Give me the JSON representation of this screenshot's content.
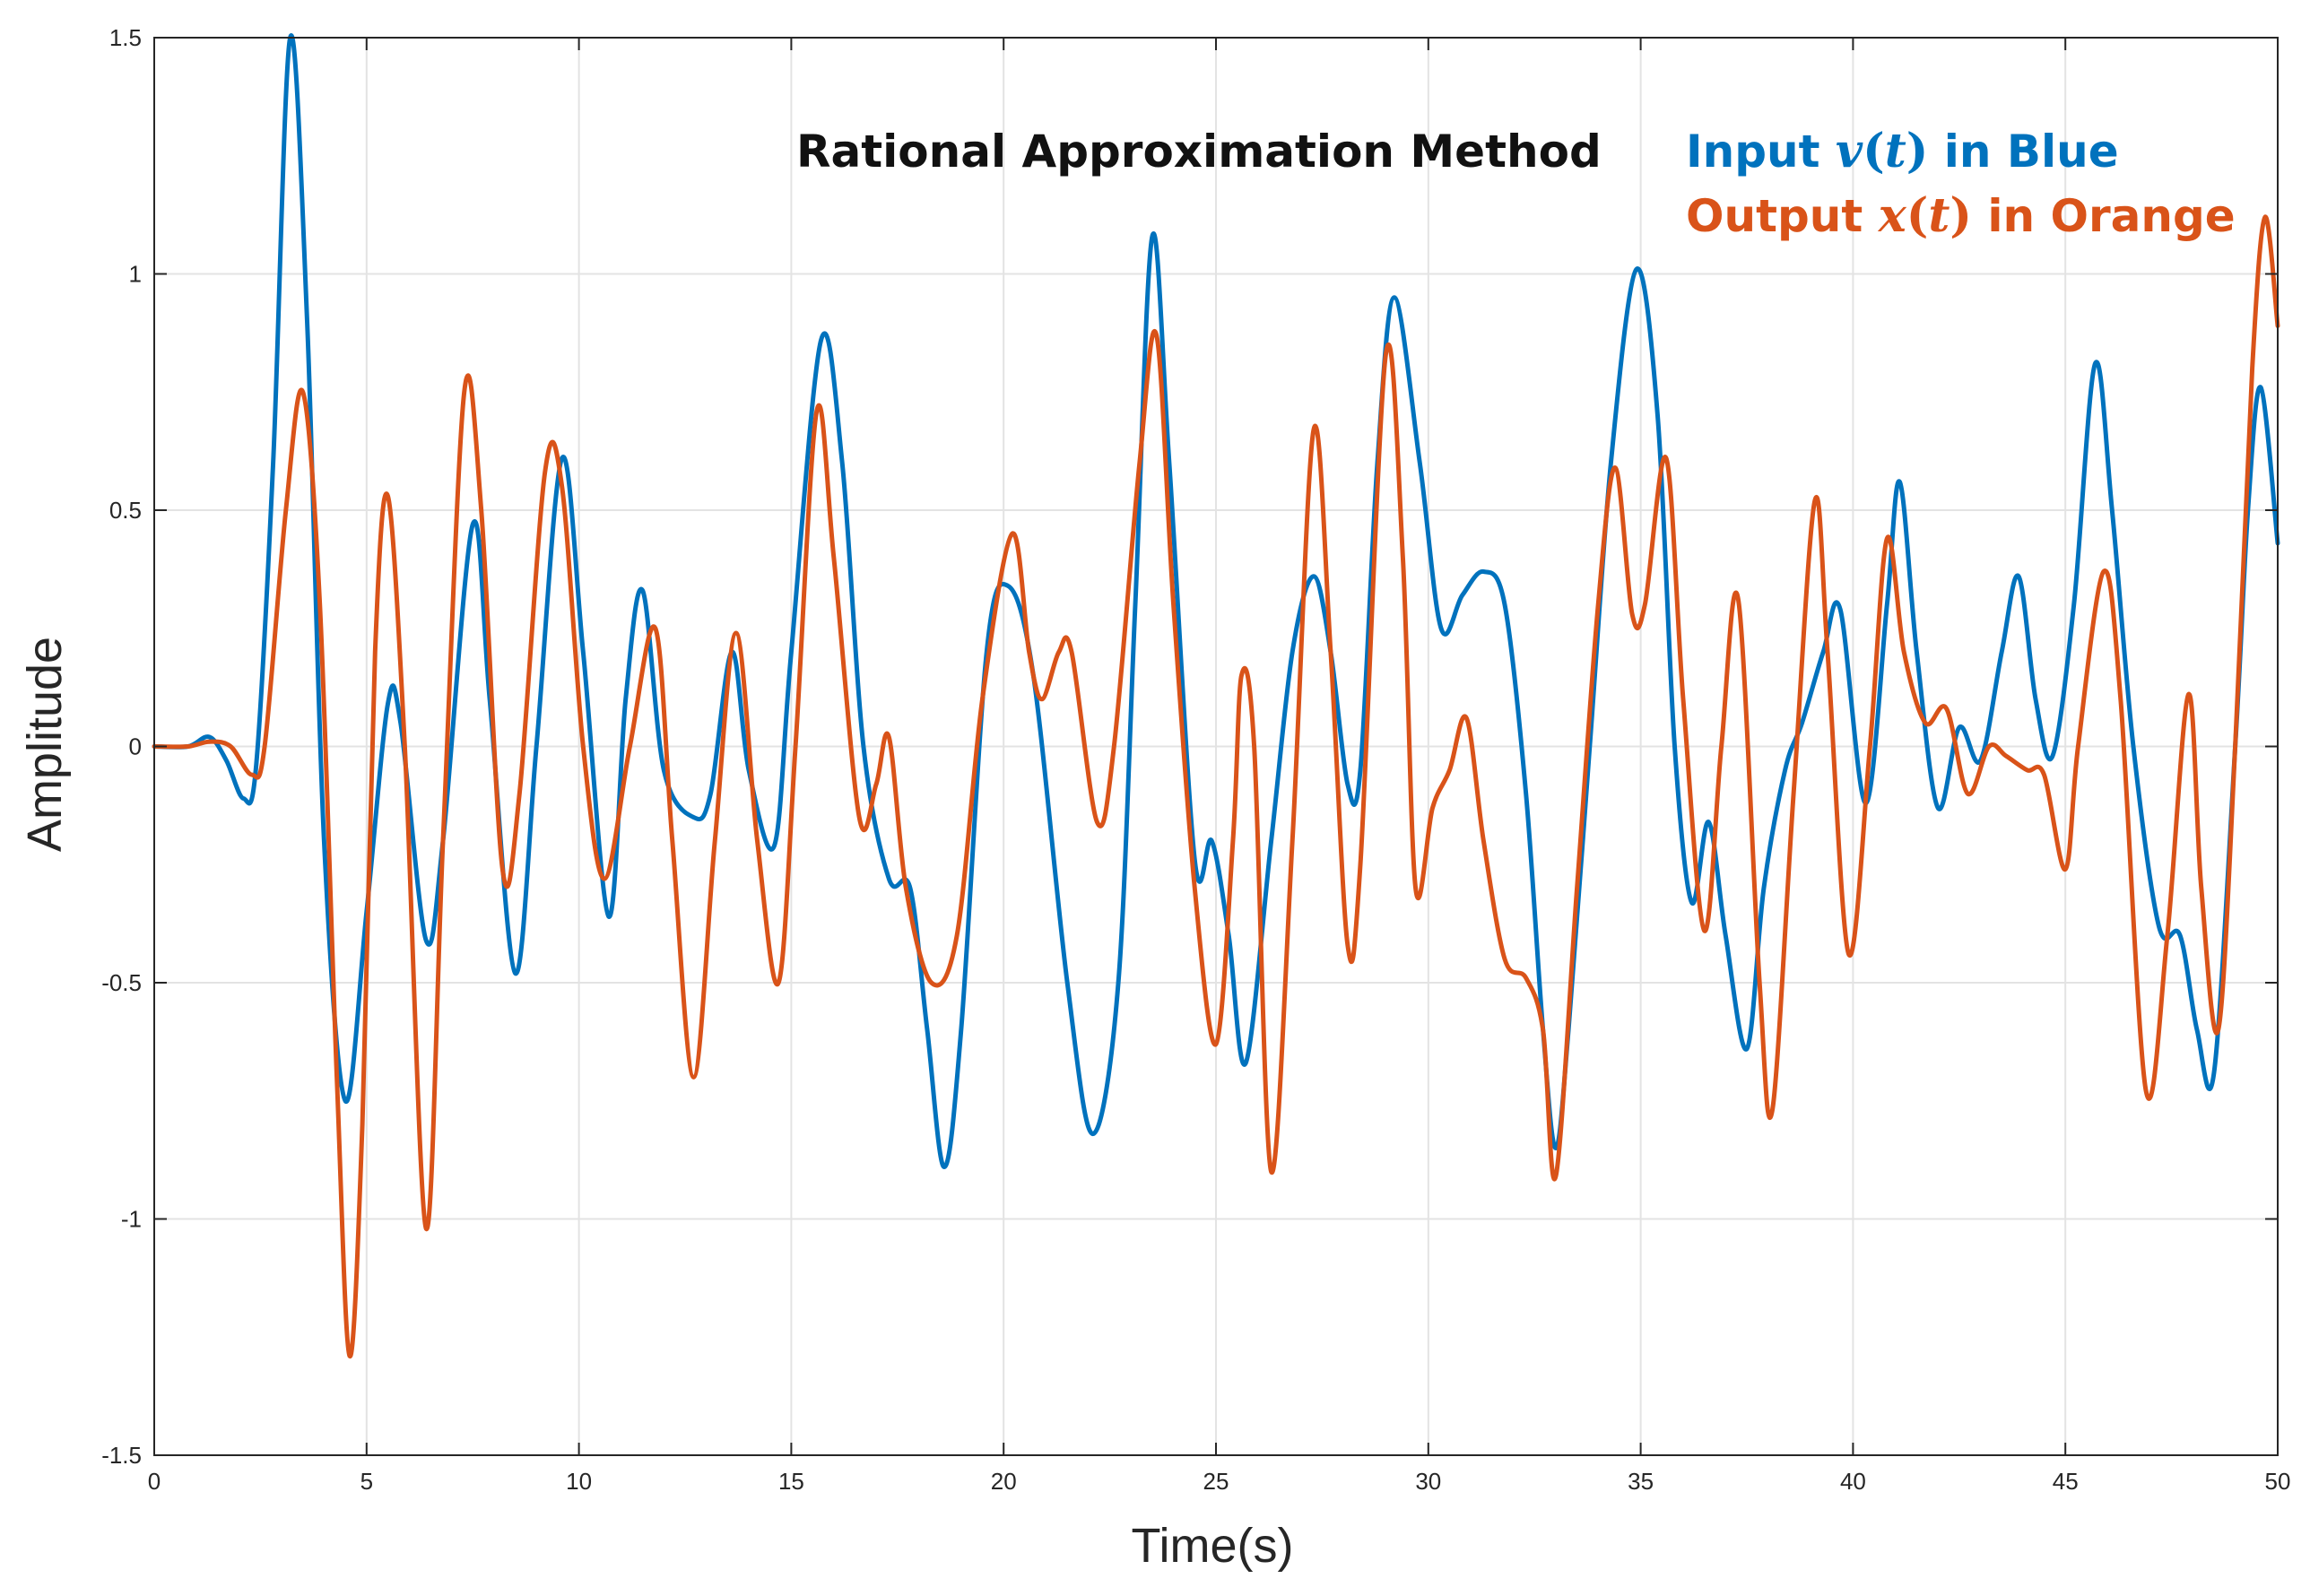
{
  "chart_data": {
    "type": "line",
    "title": "Rational Approximation Method",
    "xlabel": "Time(s)",
    "ylabel": "Amplitude",
    "xlim": [
      0,
      50
    ],
    "ylim": [
      -1.5,
      1.5
    ],
    "grid": true,
    "xticks": [
      0,
      5,
      10,
      15,
      20,
      25,
      30,
      35,
      40,
      45,
      50
    ],
    "xtick_labels": [
      "0",
      "5",
      "10",
      "15",
      "20",
      "25",
      "30",
      "35",
      "40",
      "45",
      "50"
    ],
    "yticks": [
      1.5,
      1,
      0.5,
      0,
      -0.5,
      -1,
      -1.5
    ],
    "ytick_labels": [
      "1.5",
      "1",
      "0.5",
      "0",
      "-0.5",
      "-1",
      "-1.5"
    ],
    "legend_placement": "top-right",
    "annotations": {
      "input": {
        "prefix": "Input ",
        "symbol": "v",
        "open_paren": "(",
        "variable": "t",
        "close_paren": ")",
        "suffix": " in Blue",
        "color": "#0072BD"
      },
      "output": {
        "prefix": "Output ",
        "symbol": "x",
        "open_paren": "(",
        "variable": "t",
        "close_paren": ")",
        "suffix": " in Orange",
        "color": "#D95319"
      }
    },
    "series": [
      {
        "name": "Input v(t)",
        "color": "#0072BD",
        "points": [
          [
            0,
            0
          ],
          [
            0.8,
            0.0
          ],
          [
            1.3,
            0.02
          ],
          [
            1.7,
            -0.03
          ],
          [
            2.1,
            -0.11
          ],
          [
            2.4,
            -0.04
          ],
          [
            2.8,
            0.6
          ],
          [
            3.2,
            1.5
          ],
          [
            3.6,
            0.9
          ],
          [
            4.0,
            -0.2
          ],
          [
            4.5,
            -0.75
          ],
          [
            5.0,
            -0.35
          ],
          [
            5.5,
            0.09
          ],
          [
            5.8,
            0.05
          ],
          [
            6.4,
            -0.41
          ],
          [
            6.8,
            -0.2
          ],
          [
            7.5,
            0.47
          ],
          [
            7.9,
            0.1
          ],
          [
            8.5,
            -0.48
          ],
          [
            9.0,
            0.0
          ],
          [
            9.6,
            0.61
          ],
          [
            10.1,
            0.2
          ],
          [
            10.7,
            -0.36
          ],
          [
            11.1,
            0.1
          ],
          [
            11.5,
            0.33
          ],
          [
            12.0,
            -0.05
          ],
          [
            12.7,
            -0.15
          ],
          [
            13.1,
            -0.1
          ],
          [
            13.6,
            0.2
          ],
          [
            14.0,
            -0.05
          ],
          [
            14.6,
            -0.21
          ],
          [
            15.0,
            0.2
          ],
          [
            15.7,
            0.86
          ],
          [
            16.2,
            0.6
          ],
          [
            16.7,
            0.0
          ],
          [
            17.3,
            -0.28
          ],
          [
            17.8,
            -0.3
          ],
          [
            18.2,
            -0.6
          ],
          [
            18.6,
            -0.89
          ],
          [
            19.0,
            -0.6
          ],
          [
            19.6,
            0.2
          ],
          [
            20.1,
            0.34
          ],
          [
            20.7,
            0.15
          ],
          [
            21.5,
            -0.5
          ],
          [
            22.1,
            -0.82
          ],
          [
            22.7,
            -0.5
          ],
          [
            23.1,
            0.3
          ],
          [
            23.5,
            1.08
          ],
          [
            23.9,
            0.6
          ],
          [
            24.5,
            -0.24
          ],
          [
            24.9,
            -0.2
          ],
          [
            25.3,
            -0.4
          ],
          [
            25.7,
            -0.67
          ],
          [
            26.3,
            -0.2
          ],
          [
            26.8,
            0.2
          ],
          [
            27.3,
            0.36
          ],
          [
            27.7,
            0.2
          ],
          [
            28.1,
            -0.08
          ],
          [
            28.4,
            -0.05
          ],
          [
            28.8,
            0.6
          ],
          [
            29.2,
            0.95
          ],
          [
            29.8,
            0.6
          ],
          [
            30.3,
            0.25
          ],
          [
            30.8,
            0.32
          ],
          [
            31.3,
            0.37
          ],
          [
            31.8,
            0.3
          ],
          [
            32.3,
            -0.1
          ],
          [
            32.7,
            -0.6
          ],
          [
            33.0,
            -0.85
          ],
          [
            33.3,
            -0.6
          ],
          [
            33.8,
            0.0
          ],
          [
            34.3,
            0.6
          ],
          [
            34.9,
            1.01
          ],
          [
            35.4,
            0.7
          ],
          [
            35.8,
            0.0
          ],
          [
            36.2,
            -0.33
          ],
          [
            36.6,
            -0.16
          ],
          [
            37.0,
            -0.4
          ],
          [
            37.5,
            -0.64
          ],
          [
            37.9,
            -0.3
          ],
          [
            38.4,
            -0.05
          ],
          [
            38.8,
            0.05
          ],
          [
            39.3,
            0.2
          ],
          [
            39.7,
            0.29
          ],
          [
            40.3,
            -0.12
          ],
          [
            40.8,
            0.3
          ],
          [
            41.1,
            0.56
          ],
          [
            41.5,
            0.2
          ],
          [
            42.0,
            -0.13
          ],
          [
            42.5,
            0.04
          ],
          [
            43.0,
            -0.03
          ],
          [
            43.5,
            0.2
          ],
          [
            43.9,
            0.36
          ],
          [
            44.3,
            0.1
          ],
          [
            44.7,
            -0.02
          ],
          [
            45.2,
            0.3
          ],
          [
            45.7,
            0.81
          ],
          [
            46.1,
            0.5
          ],
          [
            46.6,
            0.0
          ],
          [
            47.2,
            -0.38
          ],
          [
            47.7,
            -0.4
          ],
          [
            48.1,
            -0.6
          ],
          [
            48.5,
            -0.69
          ],
          [
            49.0,
            0.0
          ],
          [
            49.3,
            0.5
          ],
          [
            49.6,
            0.76
          ],
          [
            50.0,
            0.43
          ]
        ]
      },
      {
        "name": "Output x(t)",
        "color": "#D95319",
        "points": [
          [
            0,
            0
          ],
          [
            0.8,
            0.0
          ],
          [
            1.3,
            0.01
          ],
          [
            1.8,
            0.0
          ],
          [
            2.3,
            -0.06
          ],
          [
            2.6,
            0.0
          ],
          [
            3.1,
            0.5
          ],
          [
            3.5,
            0.75
          ],
          [
            3.9,
            0.3
          ],
          [
            4.3,
            -0.7
          ],
          [
            4.6,
            -1.29
          ],
          [
            4.9,
            -0.8
          ],
          [
            5.2,
            0.2
          ],
          [
            5.5,
            0.53
          ],
          [
            5.9,
            0.0
          ],
          [
            6.4,
            -1.02
          ],
          [
            6.8,
            -0.2
          ],
          [
            7.3,
            0.75
          ],
          [
            7.7,
            0.5
          ],
          [
            8.2,
            -0.26
          ],
          [
            8.6,
            -0.1
          ],
          [
            9.2,
            0.58
          ],
          [
            9.6,
            0.55
          ],
          [
            10.1,
            0.0
          ],
          [
            10.6,
            -0.28
          ],
          [
            11.2,
            0.0
          ],
          [
            11.8,
            0.25
          ],
          [
            12.2,
            -0.2
          ],
          [
            12.7,
            -0.7
          ],
          [
            13.2,
            -0.2
          ],
          [
            13.7,
            0.24
          ],
          [
            14.2,
            -0.2
          ],
          [
            14.7,
            -0.5
          ],
          [
            15.1,
            0.0
          ],
          [
            15.6,
            0.71
          ],
          [
            16.0,
            0.4
          ],
          [
            16.6,
            -0.15
          ],
          [
            17.0,
            -0.08
          ],
          [
            17.3,
            0.02
          ],
          [
            17.7,
            -0.3
          ],
          [
            18.3,
            -0.5
          ],
          [
            18.9,
            -0.4
          ],
          [
            19.5,
            0.1
          ],
          [
            20.2,
            0.45
          ],
          [
            20.6,
            0.2
          ],
          [
            20.9,
            0.1
          ],
          [
            21.3,
            0.2
          ],
          [
            21.6,
            0.2
          ],
          [
            22.2,
            -0.16
          ],
          [
            22.6,
            0.0
          ],
          [
            23.2,
            0.6
          ],
          [
            23.6,
            0.87
          ],
          [
            24.0,
            0.3
          ],
          [
            24.5,
            -0.3
          ],
          [
            25.0,
            -0.63
          ],
          [
            25.4,
            -0.2
          ],
          [
            25.6,
            0.15
          ],
          [
            25.9,
            0.0
          ],
          [
            26.3,
            -0.9
          ],
          [
            26.8,
            -0.2
          ],
          [
            27.3,
            0.67
          ],
          [
            27.7,
            0.2
          ],
          [
            28.1,
            -0.42
          ],
          [
            28.4,
            -0.25
          ],
          [
            29.0,
            0.83
          ],
          [
            29.4,
            0.4
          ],
          [
            29.7,
            -0.3
          ],
          [
            30.1,
            -0.13
          ],
          [
            30.5,
            -0.05
          ],
          [
            30.9,
            0.06
          ],
          [
            31.3,
            -0.2
          ],
          [
            31.8,
            -0.45
          ],
          [
            32.3,
            -0.49
          ],
          [
            32.7,
            -0.6
          ],
          [
            33.0,
            -0.91
          ],
          [
            33.5,
            -0.3
          ],
          [
            34.0,
            0.3
          ],
          [
            34.4,
            0.59
          ],
          [
            34.8,
            0.28
          ],
          [
            35.1,
            0.3
          ],
          [
            35.6,
            0.61
          ],
          [
            36.0,
            0.1
          ],
          [
            36.5,
            -0.39
          ],
          [
            36.9,
            0.0
          ],
          [
            37.3,
            0.31
          ],
          [
            37.8,
            -0.5
          ],
          [
            38.1,
            -0.77
          ],
          [
            38.6,
            -0.1
          ],
          [
            39.1,
            0.52
          ],
          [
            39.4,
            0.2
          ],
          [
            39.9,
            -0.44
          ],
          [
            40.4,
            0.0
          ],
          [
            40.8,
            0.44
          ],
          [
            41.2,
            0.2
          ],
          [
            41.7,
            0.05
          ],
          [
            42.2,
            0.08
          ],
          [
            42.7,
            -0.1
          ],
          [
            43.2,
            0.0
          ],
          [
            43.6,
            -0.02
          ],
          [
            44.1,
            -0.05
          ],
          [
            44.5,
            -0.06
          ],
          [
            45.0,
            -0.26
          ],
          [
            45.3,
            0.0
          ],
          [
            45.9,
            0.37
          ],
          [
            46.3,
            0.1
          ],
          [
            46.9,
            -0.73
          ],
          [
            47.4,
            -0.4
          ],
          [
            47.9,
            0.11
          ],
          [
            48.2,
            -0.3
          ],
          [
            48.6,
            -0.6
          ],
          [
            49.0,
            0.0
          ],
          [
            49.4,
            0.8
          ],
          [
            49.7,
            1.12
          ],
          [
            50.0,
            0.89
          ]
        ]
      }
    ]
  }
}
